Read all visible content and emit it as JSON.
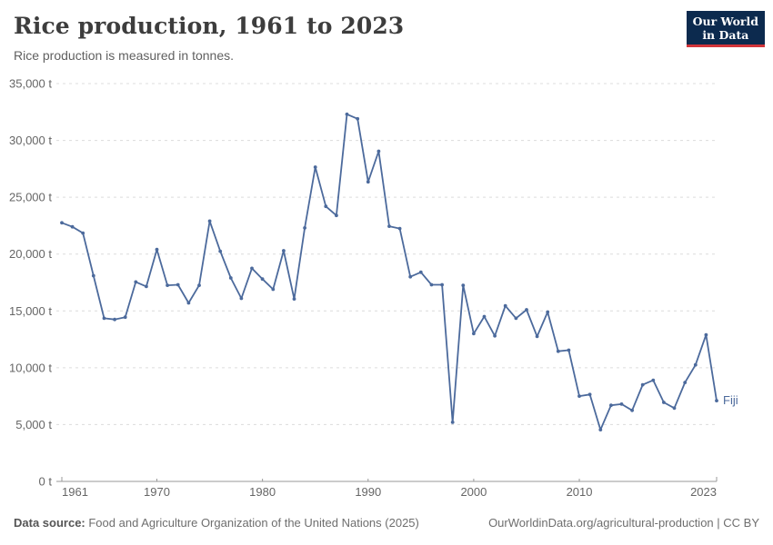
{
  "header": {
    "title": "Rice production, 1961 to 2023",
    "subtitle": "Rice production is measured in tonnes.",
    "logo": {
      "line1": "Our World",
      "line2": "in Data"
    }
  },
  "chart_data": {
    "type": "line",
    "title": "Rice production, 1961 to 2023",
    "xlabel": "",
    "ylabel": "tonnes",
    "ylim": [
      0,
      35000
    ],
    "ytick_step": 5000,
    "ytick_labels": [
      "0 t",
      "5,000 t",
      "10,000 t",
      "15,000 t",
      "20,000 t",
      "25,000 t",
      "30,000 t",
      "35,000 t"
    ],
    "xticks": [
      "1961",
      "1970",
      "1980",
      "1990",
      "2000",
      "2010",
      "2023"
    ],
    "grid": "horizontal-dashed",
    "legend_position": "end-of-line-label",
    "x": [
      1961,
      1962,
      1963,
      1964,
      1965,
      1966,
      1967,
      1968,
      1969,
      1970,
      1971,
      1972,
      1973,
      1974,
      1975,
      1976,
      1977,
      1978,
      1979,
      1980,
      1981,
      1982,
      1983,
      1984,
      1985,
      1986,
      1987,
      1988,
      1989,
      1990,
      1991,
      1992,
      1993,
      1994,
      1995,
      1996,
      1997,
      1998,
      1999,
      2000,
      2001,
      2002,
      2003,
      2004,
      2005,
      2006,
      2007,
      2008,
      2009,
      2010,
      2011,
      2012,
      2013,
      2014,
      2015,
      2016,
      2017,
      2018,
      2019,
      2020,
      2021,
      2022,
      2023
    ],
    "series": [
      {
        "name": "Fiji",
        "color": "#4c6a9c",
        "values": [
          22750,
          22400,
          21850,
          18100,
          14350,
          14250,
          14450,
          17550,
          17150,
          20400,
          17250,
          17300,
          15700,
          17250,
          22900,
          20250,
          17900,
          16100,
          18750,
          17800,
          16900,
          20300,
          16050,
          22300,
          27650,
          24200,
          23400,
          32300,
          31900,
          26350,
          29050,
          22450,
          22250,
          18000,
          18400,
          17300,
          17300,
          5200,
          17250,
          13000,
          14500,
          12800,
          15450,
          14350,
          15100,
          12750,
          14900,
          11450,
          11550,
          7500,
          7650,
          4550,
          6700,
          6800,
          6250,
          8500,
          8900,
          6950,
          6450,
          8700,
          10250,
          12900,
          7100
        ]
      }
    ]
  },
  "footer": {
    "source_label": "Data source:",
    "source_text": " Food and Agriculture Organization of the United Nations (2025)",
    "link_text": "OurWorldinData.org/agricultural-production | CC BY"
  },
  "colors": {
    "line": "#4c6a9c",
    "grid": "#dcdcdc",
    "axis": "#999999",
    "tick_text": "#666666",
    "end_label": "#4c6a9c"
  }
}
